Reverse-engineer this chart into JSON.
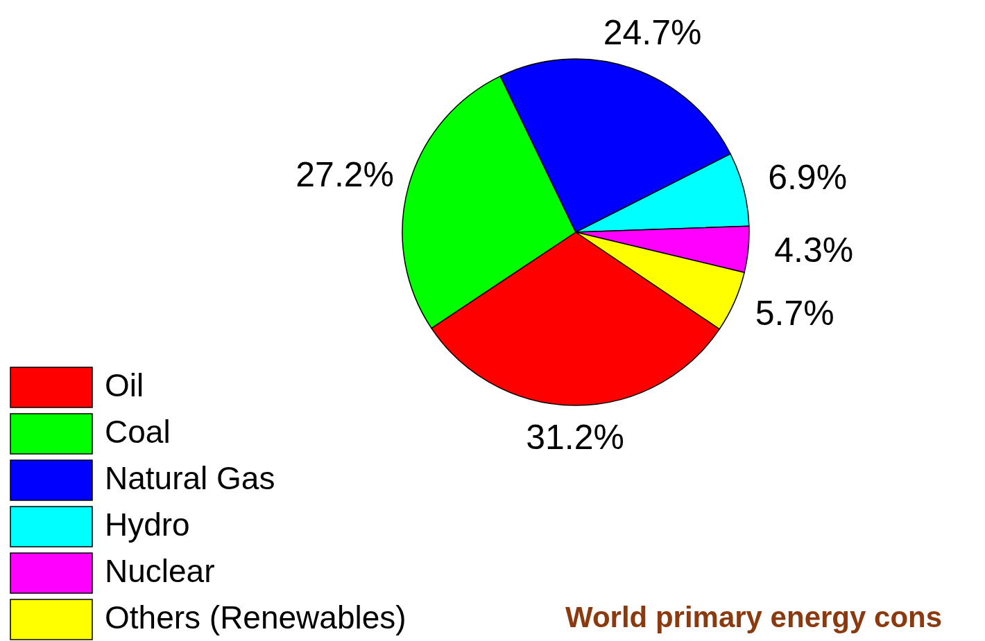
{
  "chart_data": {
    "type": "pie",
    "title": "World primary energy cons",
    "categories": [
      "Oil",
      "Coal",
      "Natural Gas",
      "Hydro",
      "Nuclear",
      "Others (Renewables)"
    ],
    "values": [
      31.2,
      27.2,
      24.7,
      6.9,
      4.3,
      5.7
    ],
    "value_labels": [
      "31.2%",
      "27.2%",
      "24.7%",
      "6.9%",
      "4.3%",
      "5.7%"
    ],
    "colors": [
      "#ff0000",
      "#00ff00",
      "#0000ff",
      "#00ffff",
      "#ff00ff",
      "#ffff00"
    ],
    "legend": "bottom left"
  }
}
